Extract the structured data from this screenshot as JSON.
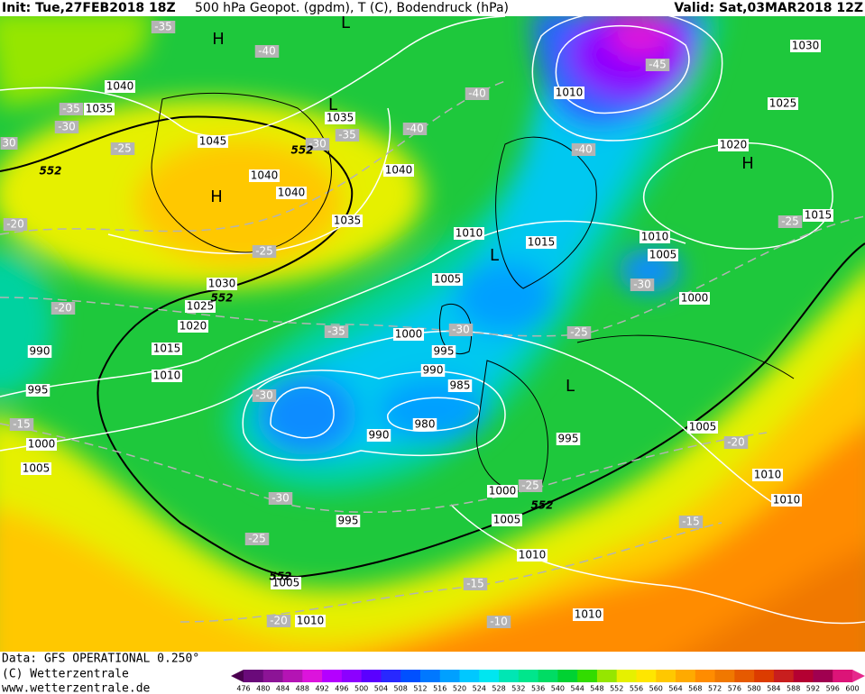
{
  "header": {
    "init": "Init: Tue,27FEB2018 18Z",
    "title": "500 hPa Geopot. (gpdm), T (C), Bodendruck (hPa)",
    "valid": "Valid: Sat,03MAR2018 12Z"
  },
  "footer": {
    "data": "Data: GFS OPERATIONAL 0.250°",
    "copyright": "(C) Wetterzentrale",
    "url": "www.wetterzentrale.de"
  },
  "map": {
    "isobar_labels": [
      "1030",
      "1025",
      "1020",
      "1015",
      "1010",
      "1040",
      "1035",
      "1045",
      "1040",
      "1040",
      "1035",
      "1040",
      "1035",
      "1030",
      "1025",
      "1020",
      "1015",
      "1010",
      "990",
      "995",
      "1000",
      "1005",
      "1010",
      "1015",
      "1010",
      "1005",
      "1000",
      "1005",
      "1000",
      "995",
      "990",
      "985",
      "980",
      "990",
      "995",
      "1000",
      "1005",
      "995",
      "1010",
      "1005",
      "1010",
      "1010",
      "1005",
      "1010",
      "1010"
    ],
    "temp_labels": [
      "-35",
      "-40",
      "-45",
      "-40",
      "-40",
      "-40",
      "-35",
      "-30",
      "-25",
      "-30",
      "-35",
      "-25",
      "-20",
      "-20",
      "-25",
      "-30",
      "-25",
      "-30",
      "-35",
      "-30",
      "-15",
      "-30",
      "-25",
      "-25",
      "-20",
      "-15",
      "-15",
      "-10",
      "-20",
      "30"
    ],
    "height_labels": [
      "552",
      "552",
      "552",
      "552",
      "552"
    ],
    "pressure_centers": [
      "H",
      "H",
      "H",
      "L",
      "L",
      "L",
      "L"
    ]
  },
  "legend": {
    "levels": [
      476,
      480,
      484,
      488,
      492,
      496,
      500,
      504,
      508,
      512,
      516,
      520,
      524,
      528,
      532,
      536,
      540,
      544,
      548,
      552,
      556,
      560,
      564,
      568,
      572,
      576,
      580,
      584,
      588,
      592,
      596,
      600
    ],
    "colors": [
      "#4b0050",
      "#6a0a7a",
      "#8c1496",
      "#b414b4",
      "#dc14dc",
      "#b400ff",
      "#8c00ff",
      "#5a00ff",
      "#2828ff",
      "#0050ff",
      "#0078ff",
      "#00a0ff",
      "#00c8ff",
      "#00e6f0",
      "#00e6b4",
      "#00e68c",
      "#00dc64",
      "#00d232",
      "#32dc00",
      "#96e600",
      "#e6f000",
      "#ffe600",
      "#ffc800",
      "#ffaa00",
      "#ff8c00",
      "#f07800",
      "#e65a00",
      "#dc3c00",
      "#c81e1e",
      "#b40032",
      "#a00050",
      "#dc1478",
      "#e6288c"
    ]
  }
}
